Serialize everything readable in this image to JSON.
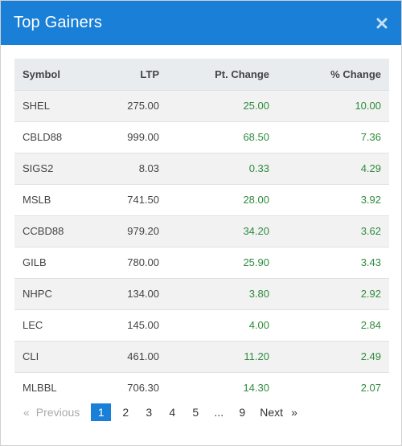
{
  "header": {
    "title": "Top Gainers",
    "close_icon": "close-icon"
  },
  "table": {
    "columns": [
      "Symbol",
      "LTP",
      "Pt. Change",
      "% Change"
    ],
    "rows": [
      {
        "symbol": "SHEL",
        "ltp": "275.00",
        "pt_change": "25.00",
        "pct_change": "10.00"
      },
      {
        "symbol": "CBLD88",
        "ltp": "999.00",
        "pt_change": "68.50",
        "pct_change": "7.36"
      },
      {
        "symbol": "SIGS2",
        "ltp": "8.03",
        "pt_change": "0.33",
        "pct_change": "4.29"
      },
      {
        "symbol": "MSLB",
        "ltp": "741.50",
        "pt_change": "28.00",
        "pct_change": "3.92"
      },
      {
        "symbol": "CCBD88",
        "ltp": "979.20",
        "pt_change": "34.20",
        "pct_change": "3.62"
      },
      {
        "symbol": "GILB",
        "ltp": "780.00",
        "pt_change": "25.90",
        "pct_change": "3.43"
      },
      {
        "symbol": "NHPC",
        "ltp": "134.00",
        "pt_change": "3.80",
        "pct_change": "2.92"
      },
      {
        "symbol": "LEC",
        "ltp": "145.00",
        "pt_change": "4.00",
        "pct_change": "2.84"
      },
      {
        "symbol": "CLI",
        "ltp": "461.00",
        "pt_change": "11.20",
        "pct_change": "2.49"
      },
      {
        "symbol": "MLBBL",
        "ltp": "706.30",
        "pt_change": "14.30",
        "pct_change": "2.07"
      }
    ]
  },
  "pagination": {
    "prev_arrow": "«",
    "prev_label": "Previous",
    "pages": [
      "1",
      "2",
      "3",
      "4",
      "5"
    ],
    "active_page": "1",
    "ellipsis": "...",
    "last_page": "9",
    "next_label": "Next",
    "next_arrow": "»"
  },
  "colors": {
    "header_bg": "#1a7fd6",
    "positive": "#2e8b3d",
    "active_page_bg": "#1a7fd6",
    "table_header_bg": "#e9ecef"
  }
}
